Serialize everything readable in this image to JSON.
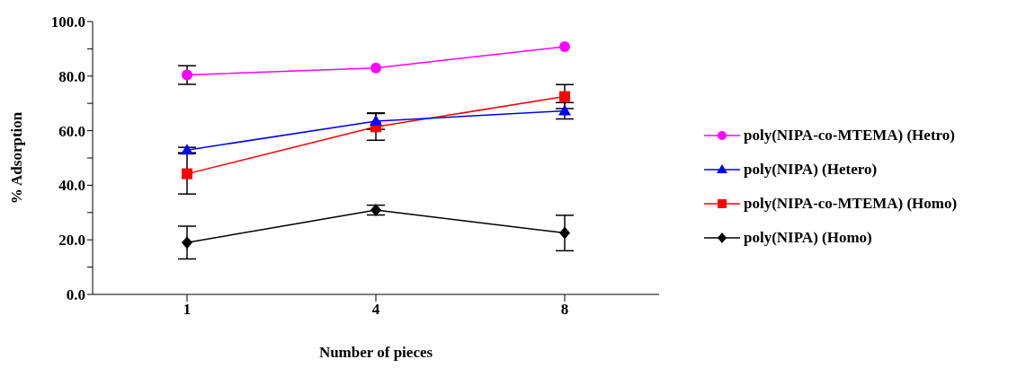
{
  "chart_data": {
    "type": "line",
    "xlabel": "Number of pieces",
    "ylabel": "% Adsorption",
    "categories": [
      "1",
      "4",
      "8"
    ],
    "ylim": [
      0,
      100
    ],
    "yticks": [
      {
        "value": 0,
        "label": "0.0"
      },
      {
        "value": 10,
        "label": null
      },
      {
        "value": 20,
        "label": "20.0"
      },
      {
        "value": 30,
        "label": null
      },
      {
        "value": 40,
        "label": "40.0"
      },
      {
        "value": 50,
        "label": null
      },
      {
        "value": 60,
        "label": "60.0"
      },
      {
        "value": 70,
        "label": null
      },
      {
        "value": 80,
        "label": "80.0"
      },
      {
        "value": 90,
        "label": null
      },
      {
        "value": 100,
        "label": "100.0"
      }
    ],
    "grid": false,
    "legend": "right",
    "series": [
      {
        "name": "poly(NIPA-co-MTEMA) (Hetro)",
        "color": "#ff00ff",
        "marker": "circle",
        "values": [
          80.4,
          83.0,
          90.8
        ],
        "errors": [
          3.4,
          null,
          null
        ]
      },
      {
        "name": "poly(NIPA) (Hetero)",
        "color": "#0000ff",
        "marker": "triangle",
        "values": [
          52.9,
          63.5,
          67.3
        ],
        "errors": [
          1.0,
          3.0,
          3.0
        ]
      },
      {
        "name": "poly(NIPA-co-MTEMA) (Homo)",
        "color": "#ff0000",
        "marker": "square",
        "values": [
          44.2,
          61.4,
          72.5
        ],
        "errors": [
          7.4,
          4.9,
          4.4
        ]
      },
      {
        "name": "poly(NIPA) (Homo)",
        "color": "#000000",
        "marker": "diamond",
        "values": [
          19.0,
          30.9,
          22.5
        ],
        "errors": [
          6.0,
          1.8,
          6.5
        ]
      }
    ]
  }
}
